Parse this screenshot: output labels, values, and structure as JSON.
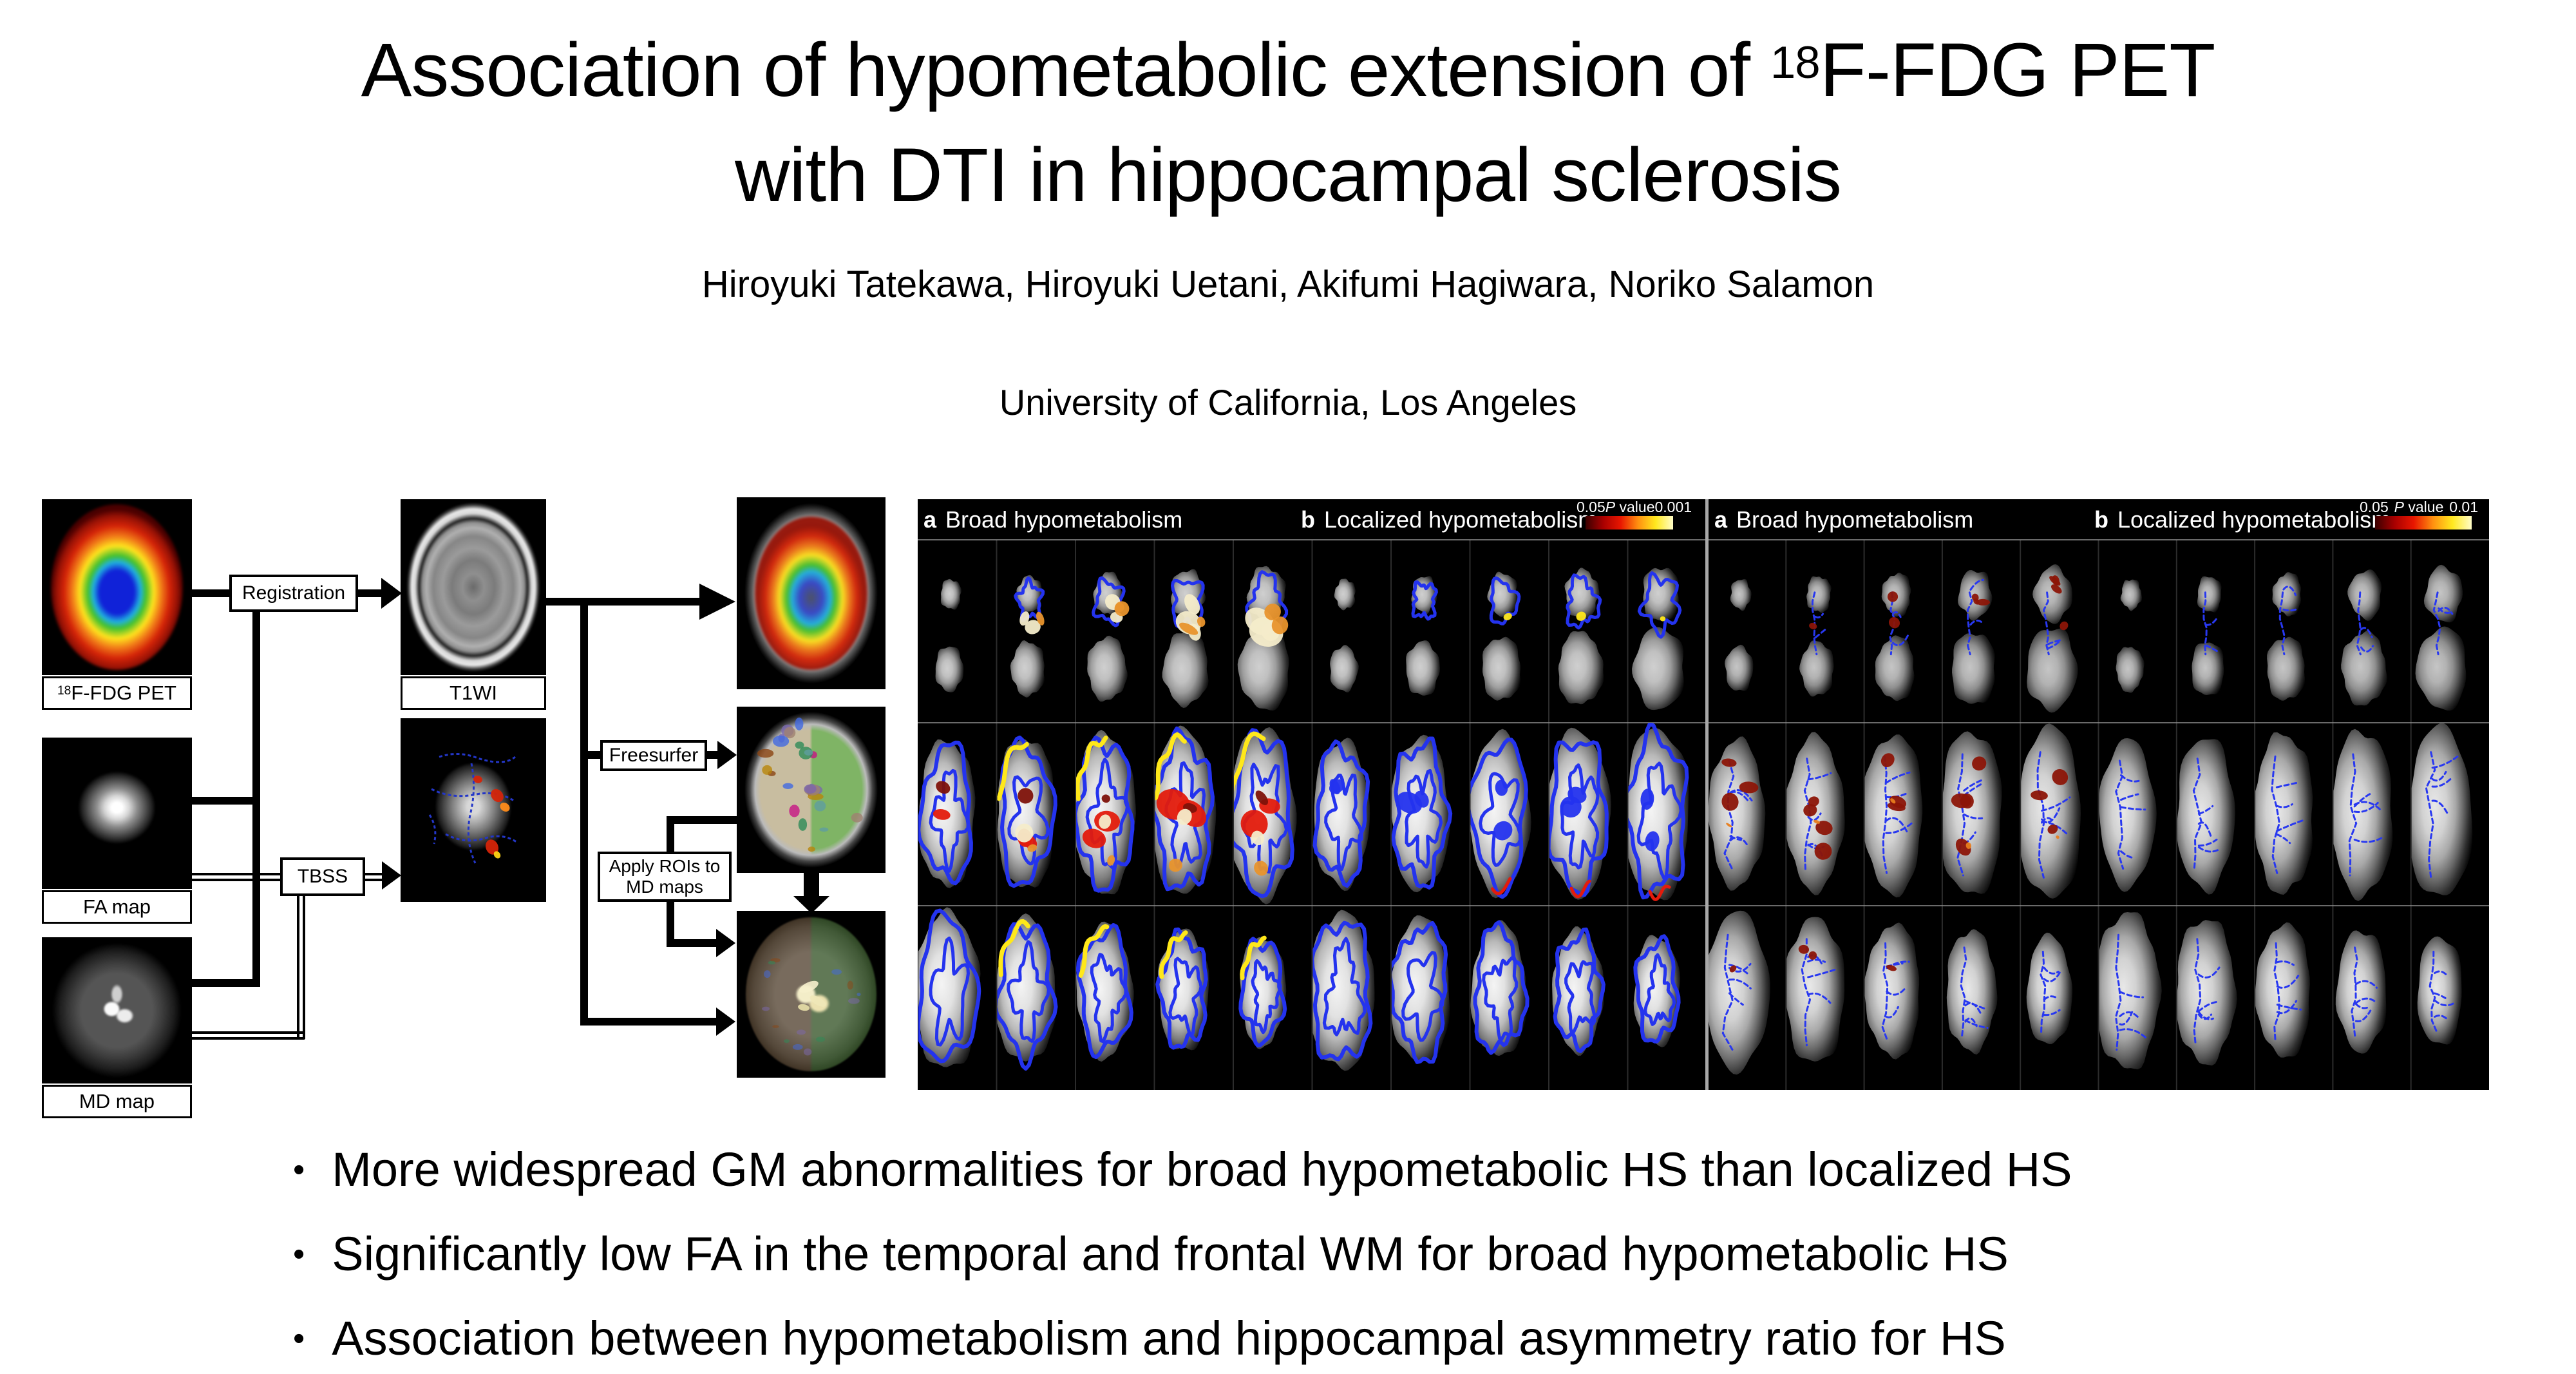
{
  "slide": {
    "title_line1_pre": "Association of hypometabolic extension of ",
    "title_superscript": "18",
    "title_line1_post": "F-FDG PET",
    "title_line2": "with DTI in hippocampal sclerosis",
    "authors": "Hiroyuki Tatekawa, Hiroyuki Uetani, Akifumi Hagiwara, Noriko Salamon",
    "affiliation": "University of California, Los Angeles"
  },
  "workflow": {
    "inputs": {
      "pet": {
        "sup": "18",
        "label": "F-FDG PET"
      },
      "fa": {
        "label": "FA map"
      },
      "md": {
        "label": "MD map"
      }
    },
    "t1": {
      "label": "T1WI"
    },
    "steps": {
      "registration": "Registration",
      "tbss": "TBSS",
      "freesurfer": "Freesurfer",
      "apply_rois_line1": "Apply ROIs to",
      "apply_rois_line2": "MD maps"
    }
  },
  "figures": [
    {
      "panel_a_letter": "a",
      "panel_a_text": "Broad hypometabolism",
      "panel_b_letter": "b",
      "panel_b_text": "Localized hypometabolism",
      "colorbar": {
        "min": "0.05",
        "p": "P",
        "value_word": "value",
        "max": "0.001"
      },
      "style": "gm",
      "rows": 3,
      "columns_per_panel": 5
    },
    {
      "panel_a_letter": "a",
      "panel_a_text": "Broad hypometabolism",
      "panel_b_letter": "b",
      "panel_b_text": "Localized hypometabolism",
      "colorbar": {
        "min": "0.05",
        "p": "P",
        "value_word": "value",
        "max": "0.01"
      },
      "style": "tbss",
      "rows": 3,
      "columns_per_panel": 5
    }
  ],
  "figure_colors": {
    "outline_blue": "#2433ee",
    "skeleton_blue": "#2838f0",
    "cluster_red": "#e31b0c",
    "cluster_dark_red": "#7e120a",
    "cluster_cream": "#f4ecca",
    "cluster_orange": "#e8932c",
    "cluster_yellow": "#ffe81a",
    "wm_cluster": "#8c1507",
    "wm_spark": "#e87d1e",
    "colorbar_gradient": [
      "#3a0000",
      "#a80000",
      "#e81600",
      "#ff9010",
      "#ffe81e",
      "#fffdc8"
    ]
  },
  "bullets": [
    "More widespread GM abnormalities for broad hypometabolic HS than localized HS",
    "Significantly low FA in the temporal and frontal WM for broad hypometabolic HS",
    "Association between hypometabolism and hippocampal asymmetry ratio for HS"
  ]
}
